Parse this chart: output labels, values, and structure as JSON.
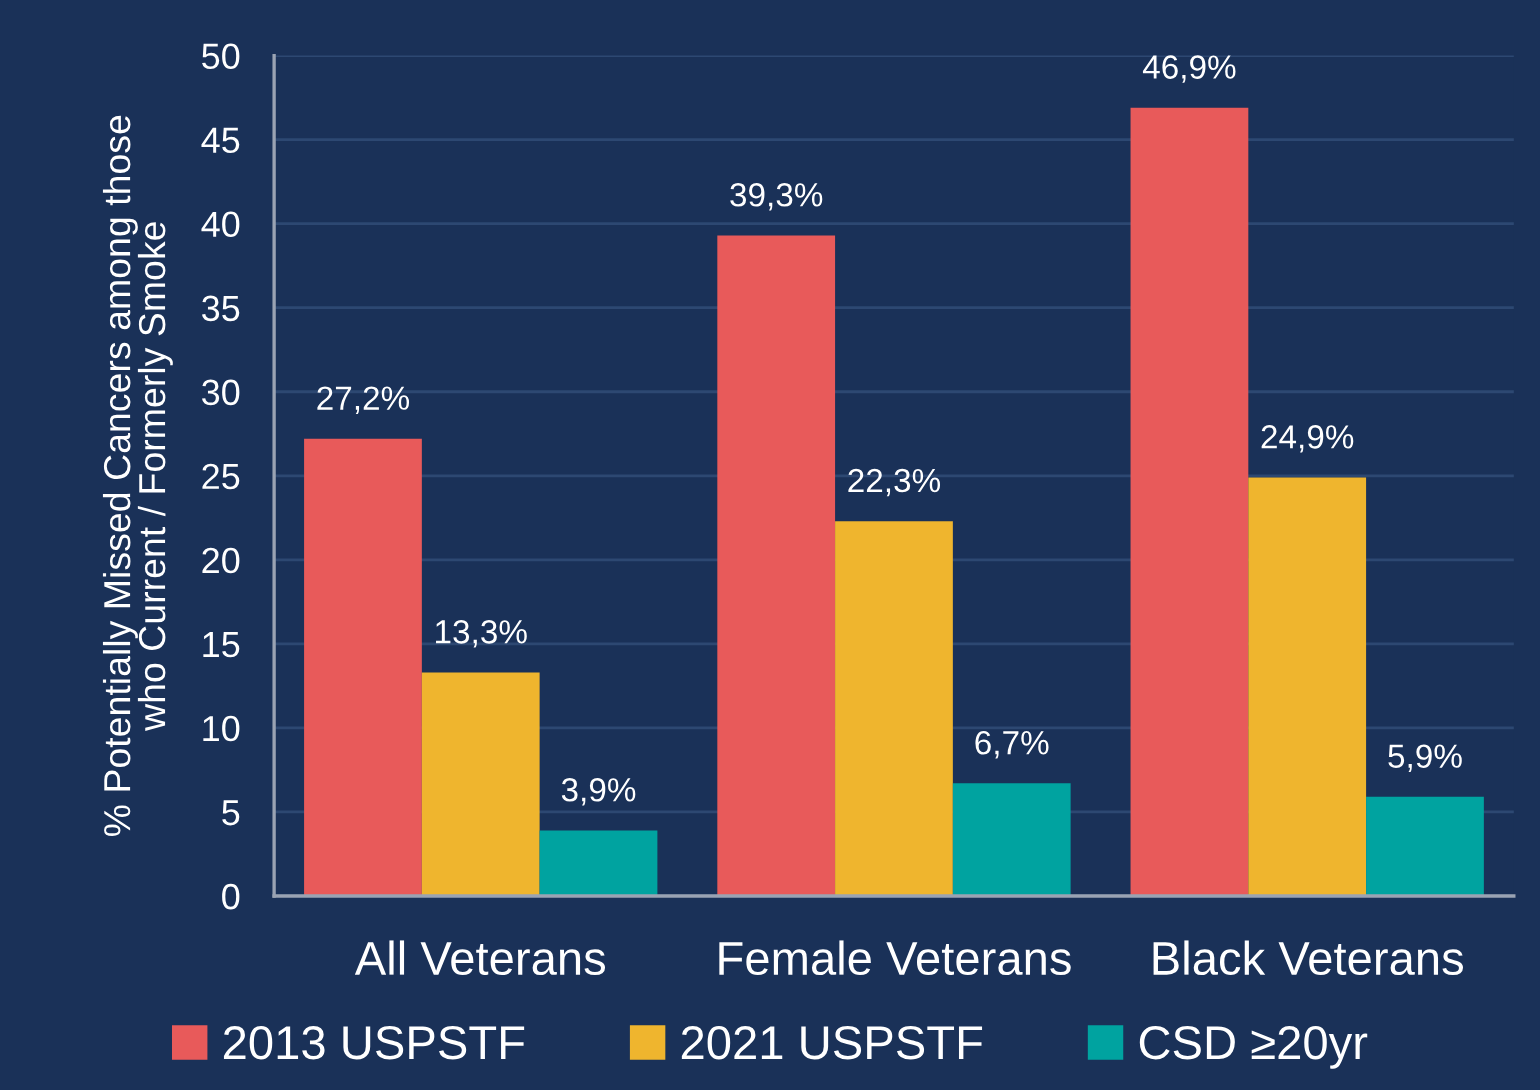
{
  "chart_data": {
    "type": "bar",
    "ylabel": "% Potentially Missed Cancers among those\nwho Current / Formerly Smoke",
    "categories": [
      "All Veterans",
      "Female Veterans",
      "Black Veterans"
    ],
    "series": [
      {
        "name": "2013 USPSTF",
        "color": "#e85a5a",
        "values": [
          27.2,
          39.3,
          46.9
        ],
        "value_labels": [
          "27,2%",
          "39,3%",
          "46,9%"
        ]
      },
      {
        "name": "2021 USPSTF",
        "color": "#efb52e",
        "values": [
          13.3,
          22.3,
          24.9
        ],
        "value_labels": [
          "13,3%",
          "22,3%",
          "24,9%"
        ]
      },
      {
        "name": "CSD ≥20yr",
        "color": "#00a3a0",
        "values": [
          3.9,
          6.7,
          5.9
        ],
        "value_labels": [
          "3,9%",
          "6,7%",
          "5,9%"
        ]
      }
    ],
    "ylim": [
      0,
      50
    ],
    "yticks": [
      0,
      5,
      10,
      15,
      20,
      25,
      30,
      35,
      40,
      45,
      50
    ],
    "grid": "y",
    "legend": "bottom"
  }
}
